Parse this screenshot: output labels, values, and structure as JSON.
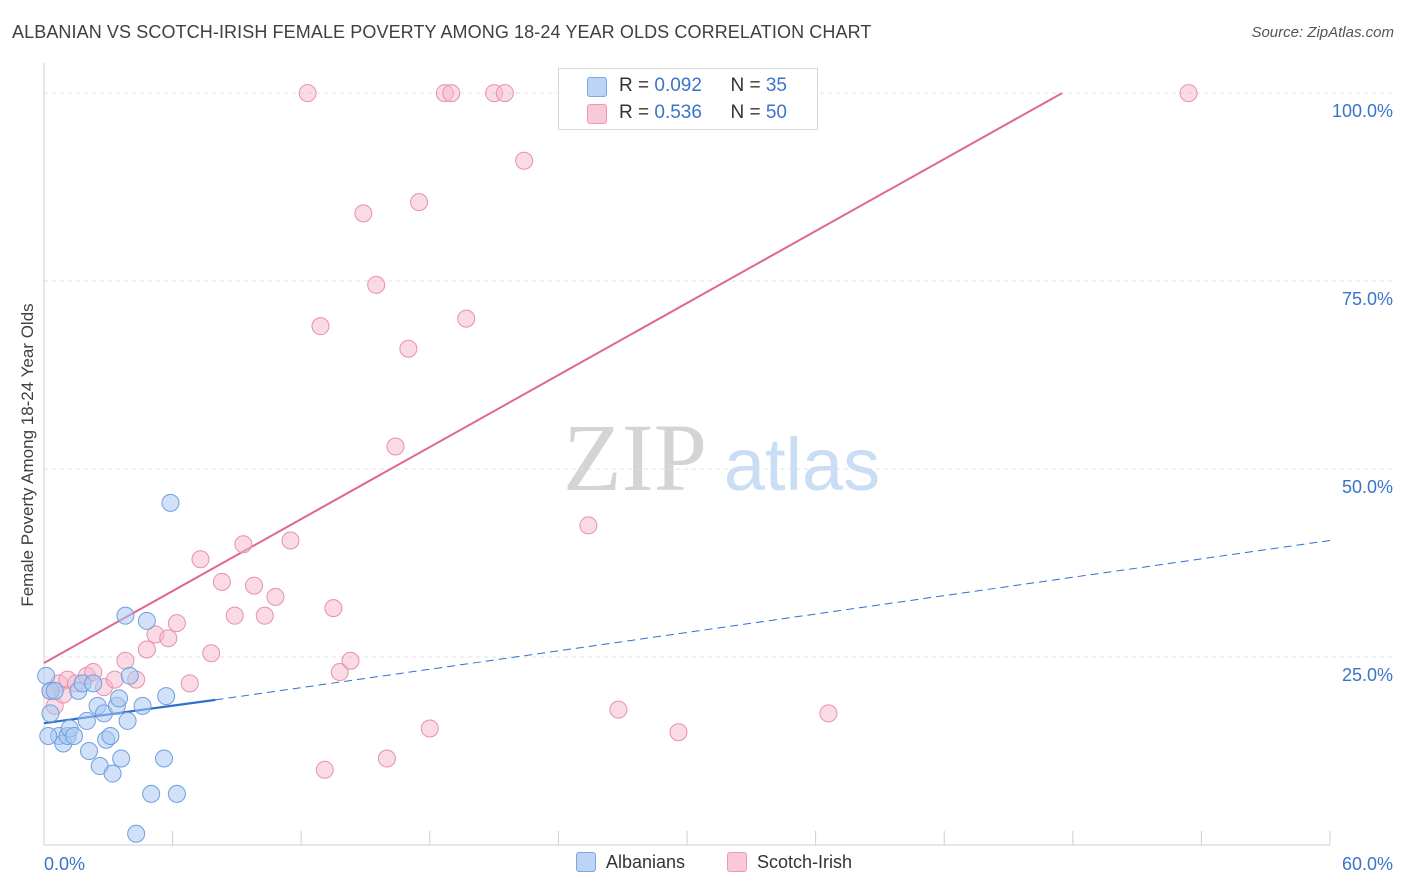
{
  "title": "ALBANIAN VS SCOTCH-IRISH FEMALE POVERTY AMONG 18-24 YEAR OLDS CORRELATION CHART",
  "source": "Source: ZipAtlas.com",
  "watermark": {
    "zip": "ZIP",
    "atlas": "atlas"
  },
  "legend": {
    "albanians": {
      "r_label": "R = ",
      "r_value": "0.092",
      "n_label": "N = ",
      "n_value": "35"
    },
    "scotch_irish": {
      "r_label": "R = ",
      "r_value": "0.536",
      "n_label": "N = ",
      "n_value": "50"
    }
  },
  "colors": {
    "albanians_fill": "#a9c8f2",
    "albanians_stroke": "#6f9fdf",
    "albanians_line": "#2f6fd1",
    "scotch_fill": "#f6b8cb",
    "scotch_stroke": "#ea8fab",
    "scotch_line": "#e0668f",
    "axis_label": "#3a74c9",
    "grid": "#e0e0e0"
  },
  "chart_data": {
    "type": "scatter",
    "title": "ALBANIAN VS SCOTCH-IRISH FEMALE POVERTY AMONG 18-24 YEAR OLDS CORRELATION CHART",
    "xlabel": "",
    "ylabel": "Female Poverty Among 18-24 Year Olds",
    "xlim": [
      0,
      60
    ],
    "ylim": [
      0,
      104
    ],
    "x_tick_labels": {
      "min": "0.0%",
      "max": "60.0%"
    },
    "y_ticks": [
      25,
      50,
      75,
      100
    ],
    "y_tick_labels": [
      "25.0%",
      "50.0%",
      "75.0%",
      "100.0%"
    ],
    "series": [
      {
        "name": "Albanians",
        "points": [
          [
            0.1,
            22.5
          ],
          [
            0.3,
            20.5
          ],
          [
            0.3,
            17.5
          ],
          [
            0.5,
            20.5
          ],
          [
            0.7,
            14.5
          ],
          [
            0.9,
            13.5
          ],
          [
            1.1,
            14.5
          ],
          [
            1.2,
            15.5
          ],
          [
            1.4,
            14.5
          ],
          [
            1.6,
            20.5
          ],
          [
            1.8,
            21.5
          ],
          [
            2.0,
            16.5
          ],
          [
            2.1,
            12.5
          ],
          [
            2.3,
            21.5
          ],
          [
            2.5,
            18.5
          ],
          [
            2.6,
            10.5
          ],
          [
            2.8,
            17.5
          ],
          [
            2.9,
            14.0
          ],
          [
            3.1,
            14.5
          ],
          [
            3.2,
            9.5
          ],
          [
            3.4,
            18.5
          ],
          [
            3.5,
            19.5
          ],
          [
            3.6,
            11.5
          ],
          [
            3.8,
            30.5
          ],
          [
            3.9,
            16.5
          ],
          [
            4.0,
            22.5
          ],
          [
            4.3,
            1.5
          ],
          [
            4.6,
            18.5
          ],
          [
            4.8,
            29.8
          ],
          [
            5.0,
            6.8
          ],
          [
            5.6,
            11.5
          ],
          [
            5.7,
            19.8
          ],
          [
            5.9,
            45.5
          ],
          [
            6.2,
            6.8
          ],
          [
            0.2,
            14.5
          ]
        ],
        "trend_solid": {
          "x": [
            0,
            8
          ],
          "y": [
            16.2,
            19.3
          ]
        },
        "trend_dashed": {
          "x": [
            8,
            60
          ],
          "y": [
            19.3,
            40.5
          ]
        }
      },
      {
        "name": "Scotch-Irish",
        "points": [
          [
            0.3,
            20.5
          ],
          [
            0.5,
            18.5
          ],
          [
            0.7,
            21.5
          ],
          [
            0.9,
            20.0
          ],
          [
            1.1,
            22.0
          ],
          [
            1.5,
            21.5
          ],
          [
            2.0,
            22.5
          ],
          [
            2.3,
            23.0
          ],
          [
            2.8,
            21.0
          ],
          [
            3.3,
            22.0
          ],
          [
            3.8,
            24.5
          ],
          [
            4.3,
            22.0
          ],
          [
            4.8,
            26.0
          ],
          [
            5.2,
            28.0
          ],
          [
            5.8,
            27.5
          ],
          [
            6.2,
            29.5
          ],
          [
            6.8,
            21.5
          ],
          [
            7.3,
            38.0
          ],
          [
            7.8,
            25.5
          ],
          [
            8.3,
            35.0
          ],
          [
            8.9,
            30.5
          ],
          [
            9.3,
            40.0
          ],
          [
            9.8,
            34.5
          ],
          [
            10.3,
            30.5
          ],
          [
            10.8,
            33.0
          ],
          [
            11.5,
            40.5
          ],
          [
            12.3,
            100.0
          ],
          [
            12.9,
            69.0
          ],
          [
            13.1,
            10.0
          ],
          [
            13.5,
            31.5
          ],
          [
            13.8,
            23.0
          ],
          [
            14.3,
            24.5
          ],
          [
            14.9,
            84.0
          ],
          [
            15.5,
            74.5
          ],
          [
            16.0,
            11.5
          ],
          [
            16.4,
            53.0
          ],
          [
            17.0,
            66.0
          ],
          [
            17.5,
            85.5
          ],
          [
            18.0,
            15.5
          ],
          [
            18.7,
            100.0
          ],
          [
            19.0,
            100.0
          ],
          [
            19.7,
            70.0
          ],
          [
            21.0,
            100.0
          ],
          [
            21.5,
            100.0
          ],
          [
            22.4,
            91.0
          ],
          [
            25.4,
            42.5
          ],
          [
            26.8,
            18.0
          ],
          [
            29.6,
            15.0
          ],
          [
            36.6,
            17.5
          ],
          [
            53.4,
            100.0
          ]
        ],
        "trend": {
          "x": [
            0,
            47.5
          ],
          "y": [
            24.2,
            100.0
          ]
        }
      }
    ]
  },
  "bottom_legend": {
    "albanians": "Albanians",
    "scotch_irish": "Scotch-Irish"
  }
}
